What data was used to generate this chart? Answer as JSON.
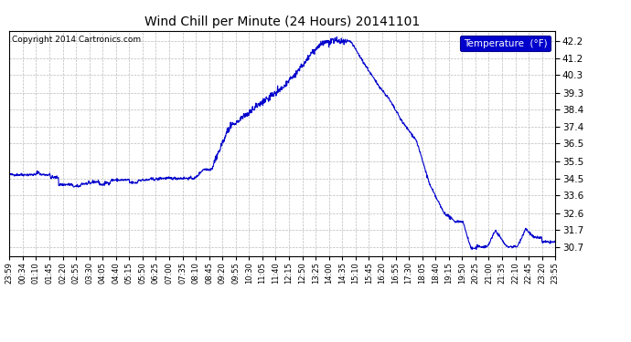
{
  "title": "Wind Chill per Minute (24 Hours) 20141101",
  "copyright_text": "Copyright 2014 Cartronics.com",
  "legend_label": "Temperature  (°F)",
  "line_color": "#0000cc",
  "background_color": "#ffffff",
  "grid_color": "#bbbbbb",
  "ylim": [
    30.2,
    42.75
  ],
  "yticks": [
    30.7,
    31.7,
    32.6,
    33.6,
    34.5,
    35.5,
    36.5,
    37.4,
    38.4,
    39.3,
    40.3,
    41.2,
    42.2
  ],
  "xtick_labels": [
    "23:59",
    "00:34",
    "01:10",
    "01:45",
    "02:20",
    "02:55",
    "03:30",
    "04:05",
    "04:40",
    "05:15",
    "05:50",
    "06:25",
    "07:00",
    "07:35",
    "08:10",
    "08:45",
    "09:20",
    "09:55",
    "10:30",
    "11:05",
    "11:40",
    "12:15",
    "12:50",
    "13:25",
    "14:00",
    "14:35",
    "15:10",
    "15:45",
    "16:20",
    "16:55",
    "17:30",
    "18:05",
    "18:40",
    "19:15",
    "19:50",
    "20:25",
    "21:00",
    "21:35",
    "22:10",
    "22:45",
    "23:20",
    "23:55"
  ],
  "num_points": 1440,
  "figsize": [
    6.9,
    3.75
  ],
  "dpi": 100
}
